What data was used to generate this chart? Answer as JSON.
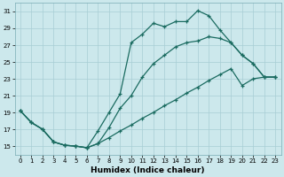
{
  "xlabel": "Humidex (Indice chaleur)",
  "bg_color": "#cce8ec",
  "grid_color": "#a8cdd4",
  "line_color": "#1a6b60",
  "xlim": [
    -0.5,
    23.5
  ],
  "ylim": [
    14.0,
    32.0
  ],
  "yticks": [
    15,
    17,
    19,
    21,
    23,
    25,
    27,
    29,
    31
  ],
  "xticks": [
    0,
    1,
    2,
    3,
    4,
    5,
    6,
    7,
    8,
    9,
    10,
    11,
    12,
    13,
    14,
    15,
    16,
    17,
    18,
    19,
    20,
    21,
    22,
    23
  ],
  "curve1_x": [
    0,
    1,
    2,
    3,
    4,
    5,
    6,
    7,
    8,
    9,
    10,
    11,
    12,
    13,
    14,
    15,
    16,
    17,
    18,
    19,
    20,
    21,
    22,
    23
  ],
  "curve1_y": [
    19.2,
    17.8,
    17.0,
    15.5,
    15.1,
    15.0,
    14.8,
    16.8,
    19.0,
    21.2,
    27.3,
    28.3,
    29.6,
    29.2,
    29.8,
    29.8,
    31.1,
    30.5,
    28.8,
    27.3,
    25.8,
    24.8,
    23.2,
    23.2
  ],
  "curve2_x": [
    0,
    1,
    2,
    3,
    4,
    5,
    6,
    7,
    8,
    9,
    10,
    11,
    12,
    13,
    14,
    15,
    16,
    17,
    18,
    19,
    20,
    21,
    22,
    23
  ],
  "curve2_y": [
    19.2,
    17.8,
    17.0,
    15.5,
    15.1,
    15.0,
    14.8,
    15.3,
    17.2,
    19.5,
    21.0,
    23.2,
    24.8,
    25.8,
    26.8,
    27.3,
    27.5,
    28.0,
    27.8,
    27.3,
    25.8,
    24.8,
    23.2,
    23.2
  ],
  "curve3_x": [
    0,
    1,
    2,
    3,
    4,
    5,
    6,
    7,
    8,
    9,
    10,
    11,
    12,
    13,
    14,
    15,
    16,
    17,
    18,
    19,
    20,
    21,
    22,
    23
  ],
  "curve3_y": [
    19.2,
    17.8,
    17.0,
    15.5,
    15.1,
    15.0,
    14.8,
    15.3,
    16.0,
    16.8,
    17.5,
    18.3,
    19.0,
    19.8,
    20.5,
    21.3,
    22.0,
    22.8,
    23.5,
    24.2,
    22.2,
    23.0,
    23.2,
    23.2
  ]
}
